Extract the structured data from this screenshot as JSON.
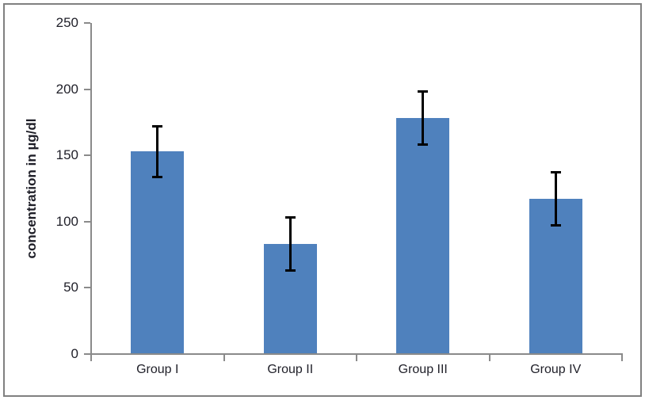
{
  "chart_data": {
    "type": "bar",
    "title": "",
    "categories": [
      "Group I",
      "Group II",
      "Group III",
      "Group IV"
    ],
    "values": [
      153,
      83,
      178,
      117
    ],
    "errors": [
      20,
      21,
      21,
      21
    ],
    "xlabel": "",
    "ylabel": "concentration in µg/dl",
    "ylim": [
      0,
      250
    ],
    "yticks": [
      0,
      50,
      100,
      150,
      200,
      250
    ],
    "grid": false,
    "legend": false,
    "bar_color": "#4F81BD",
    "error_bar_color": "#000000",
    "axis_color": "#8A8A8A",
    "label_color": "#1F1F28",
    "frame_color": "#808080",
    "background": "#FFFFFF"
  }
}
